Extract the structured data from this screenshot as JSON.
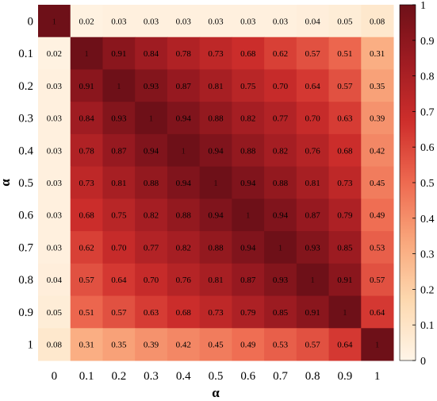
{
  "chart_data": {
    "type": "heatmap",
    "title": "",
    "xlabel": "α",
    "ylabel": "α",
    "x_categories": [
      "0",
      "0.1",
      "0.2",
      "0.3",
      "0.4",
      "0.5",
      "0.6",
      "0.7",
      "0.8",
      "0.9",
      "1"
    ],
    "y_categories": [
      "0",
      "0.1",
      "0.2",
      "0.3",
      "0.4",
      "0.5",
      "0.6",
      "0.7",
      "0.8",
      "0.9",
      "1"
    ],
    "values": [
      [
        1,
        0.02,
        0.03,
        0.03,
        0.03,
        0.03,
        0.03,
        0.03,
        0.04,
        0.05,
        0.08
      ],
      [
        0.02,
        1,
        0.91,
        0.84,
        0.78,
        0.73,
        0.68,
        0.62,
        0.57,
        0.51,
        0.31
      ],
      [
        0.03,
        0.91,
        1,
        0.93,
        0.87,
        0.81,
        0.75,
        0.7,
        0.64,
        0.57,
        0.35
      ],
      [
        0.03,
        0.84,
        0.93,
        1,
        0.94,
        0.88,
        0.82,
        0.77,
        0.7,
        0.63,
        0.39
      ],
      [
        0.03,
        0.78,
        0.87,
        0.94,
        1,
        0.94,
        0.88,
        0.82,
        0.76,
        0.68,
        0.42
      ],
      [
        0.03,
        0.73,
        0.81,
        0.88,
        0.94,
        1,
        0.94,
        0.88,
        0.81,
        0.73,
        0.45
      ],
      [
        0.03,
        0.68,
        0.75,
        0.82,
        0.88,
        0.94,
        1,
        0.94,
        0.87,
        0.79,
        0.49
      ],
      [
        0.03,
        0.62,
        0.7,
        0.77,
        0.82,
        0.88,
        0.94,
        1,
        0.93,
        0.85,
        0.53
      ],
      [
        0.04,
        0.57,
        0.64,
        0.7,
        0.76,
        0.81,
        0.87,
        0.93,
        1,
        0.91,
        0.57
      ],
      [
        0.05,
        0.51,
        0.57,
        0.63,
        0.68,
        0.73,
        0.79,
        0.85,
        0.91,
        1,
        0.64
      ],
      [
        0.08,
        0.31,
        0.35,
        0.39,
        0.42,
        0.45,
        0.49,
        0.53,
        0.57,
        0.64,
        1
      ]
    ],
    "cell_labels": [
      [
        "1",
        "0.02",
        "0.03",
        "0.03",
        "0.03",
        "0.03",
        "0.03",
        "0.03",
        "0.04",
        "0.05",
        "0.08"
      ],
      [
        "0.02",
        "1",
        "0.91",
        "0.84",
        "0.78",
        "0.73",
        "0.68",
        "0.62",
        "0.57",
        "0.51",
        "0.31"
      ],
      [
        "0.03",
        "0.91",
        "1",
        "0.93",
        "0.87",
        "0.81",
        "0.75",
        "0.70",
        "0.64",
        "0.57",
        "0.35"
      ],
      [
        "0.03",
        "0.84",
        "0.93",
        "1",
        "0.94",
        "0.88",
        "0.82",
        "0.77",
        "0.70",
        "0.63",
        "0.39"
      ],
      [
        "0.03",
        "0.78",
        "0.87",
        "0.94",
        "1",
        "0.94",
        "0.88",
        "0.82",
        "0.76",
        "0.68",
        "0.42"
      ],
      [
        "0.03",
        "0.73",
        "0.81",
        "0.88",
        "0.94",
        "1",
        "0.94",
        "0.88",
        "0.81",
        "0.73",
        "0.45"
      ],
      [
        "0.03",
        "0.68",
        "0.75",
        "0.82",
        "0.88",
        "0.94",
        "1",
        "0.94",
        "0.87",
        "0.79",
        "0.49"
      ],
      [
        "0.03",
        "0.62",
        "0.70",
        "0.77",
        "0.82",
        "0.88",
        "0.94",
        "1",
        "0.93",
        "0.85",
        "0.53"
      ],
      [
        "0.04",
        "0.57",
        "0.64",
        "0.70",
        "0.76",
        "0.81",
        "0.87",
        "0.93",
        "1",
        "0.91",
        "0.57"
      ],
      [
        "0.05",
        "0.51",
        "0.57",
        "0.63",
        "0.68",
        "0.73",
        "0.79",
        "0.85",
        "0.91",
        "1",
        "0.64"
      ],
      [
        "0.08",
        "0.31",
        "0.35",
        "0.39",
        "0.42",
        "0.45",
        "0.49",
        "0.53",
        "0.57",
        "0.64",
        "1"
      ]
    ],
    "zlim": [
      0,
      1
    ],
    "colorbar_ticks": [
      "0",
      "0.1",
      "0.2",
      "0.3",
      "0.4",
      "0.5",
      "0.6",
      "0.7",
      "0.8",
      "0.9",
      "1"
    ],
    "colormap": [
      "#fff5e8",
      "#fdd9b0",
      "#f9a77c",
      "#ee6a50",
      "#cf2f2c",
      "#a11c22",
      "#6e1018"
    ],
    "grid": false,
    "legend": "colorbar-right"
  }
}
